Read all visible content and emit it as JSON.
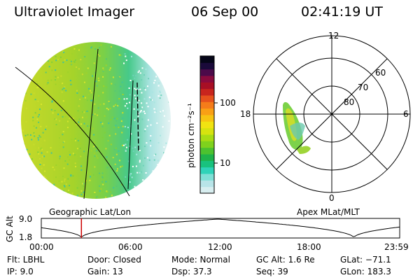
{
  "header": {
    "instrument": "Ultraviolet Imager",
    "date": "06 Sep 00",
    "time": "02:41:19 UT"
  },
  "colorbar": {
    "unit_label": "photon cm⁻²s⁻¹",
    "ticks": [
      "100",
      "10"
    ],
    "colors": [
      "#d8eef0",
      "#b8e4e8",
      "#7fe0d6",
      "#2fd3b8",
      "#19c27e",
      "#1fb34a",
      "#4cc22f",
      "#7fd21d",
      "#a8dc14",
      "#d6e30f",
      "#f1e311",
      "#f7c412",
      "#f9a015",
      "#f57c1a",
      "#e6521d",
      "#c8251e",
      "#a80f25",
      "#8a0b3e",
      "#4c0a4a",
      "#1a0a3a",
      "#050618"
    ]
  },
  "left_panel": {
    "label": "Geographic Lat/Lon"
  },
  "right_panel": {
    "label": "Apex MLat/MLT",
    "mlt_labels": [
      "12",
      "18",
      "6",
      "0"
    ],
    "mlat_labels": [
      "60",
      "70",
      "80"
    ]
  },
  "altitude_plot": {
    "ylabel": "GC Alt",
    "y_ticks": [
      "9.0",
      "1.8"
    ],
    "x_ticks": [
      "00:00",
      "06:00",
      "12:00",
      "18:00",
      "23:59"
    ],
    "current_marker_fraction": 0.112
  },
  "footer": {
    "flt": "Flt: LBHL",
    "ip": "IP:  9.0",
    "door": "Door: Closed",
    "gain": "Gain: 13",
    "mode": "Mode: Normal",
    "dsp": "Dsp:   37.3",
    "gc_alt": "GC Alt: 1.6 Re",
    "seq": "Seq: 39",
    "glat": "GLat: −71.1",
    "glon": "GLon: 183.3"
  }
}
